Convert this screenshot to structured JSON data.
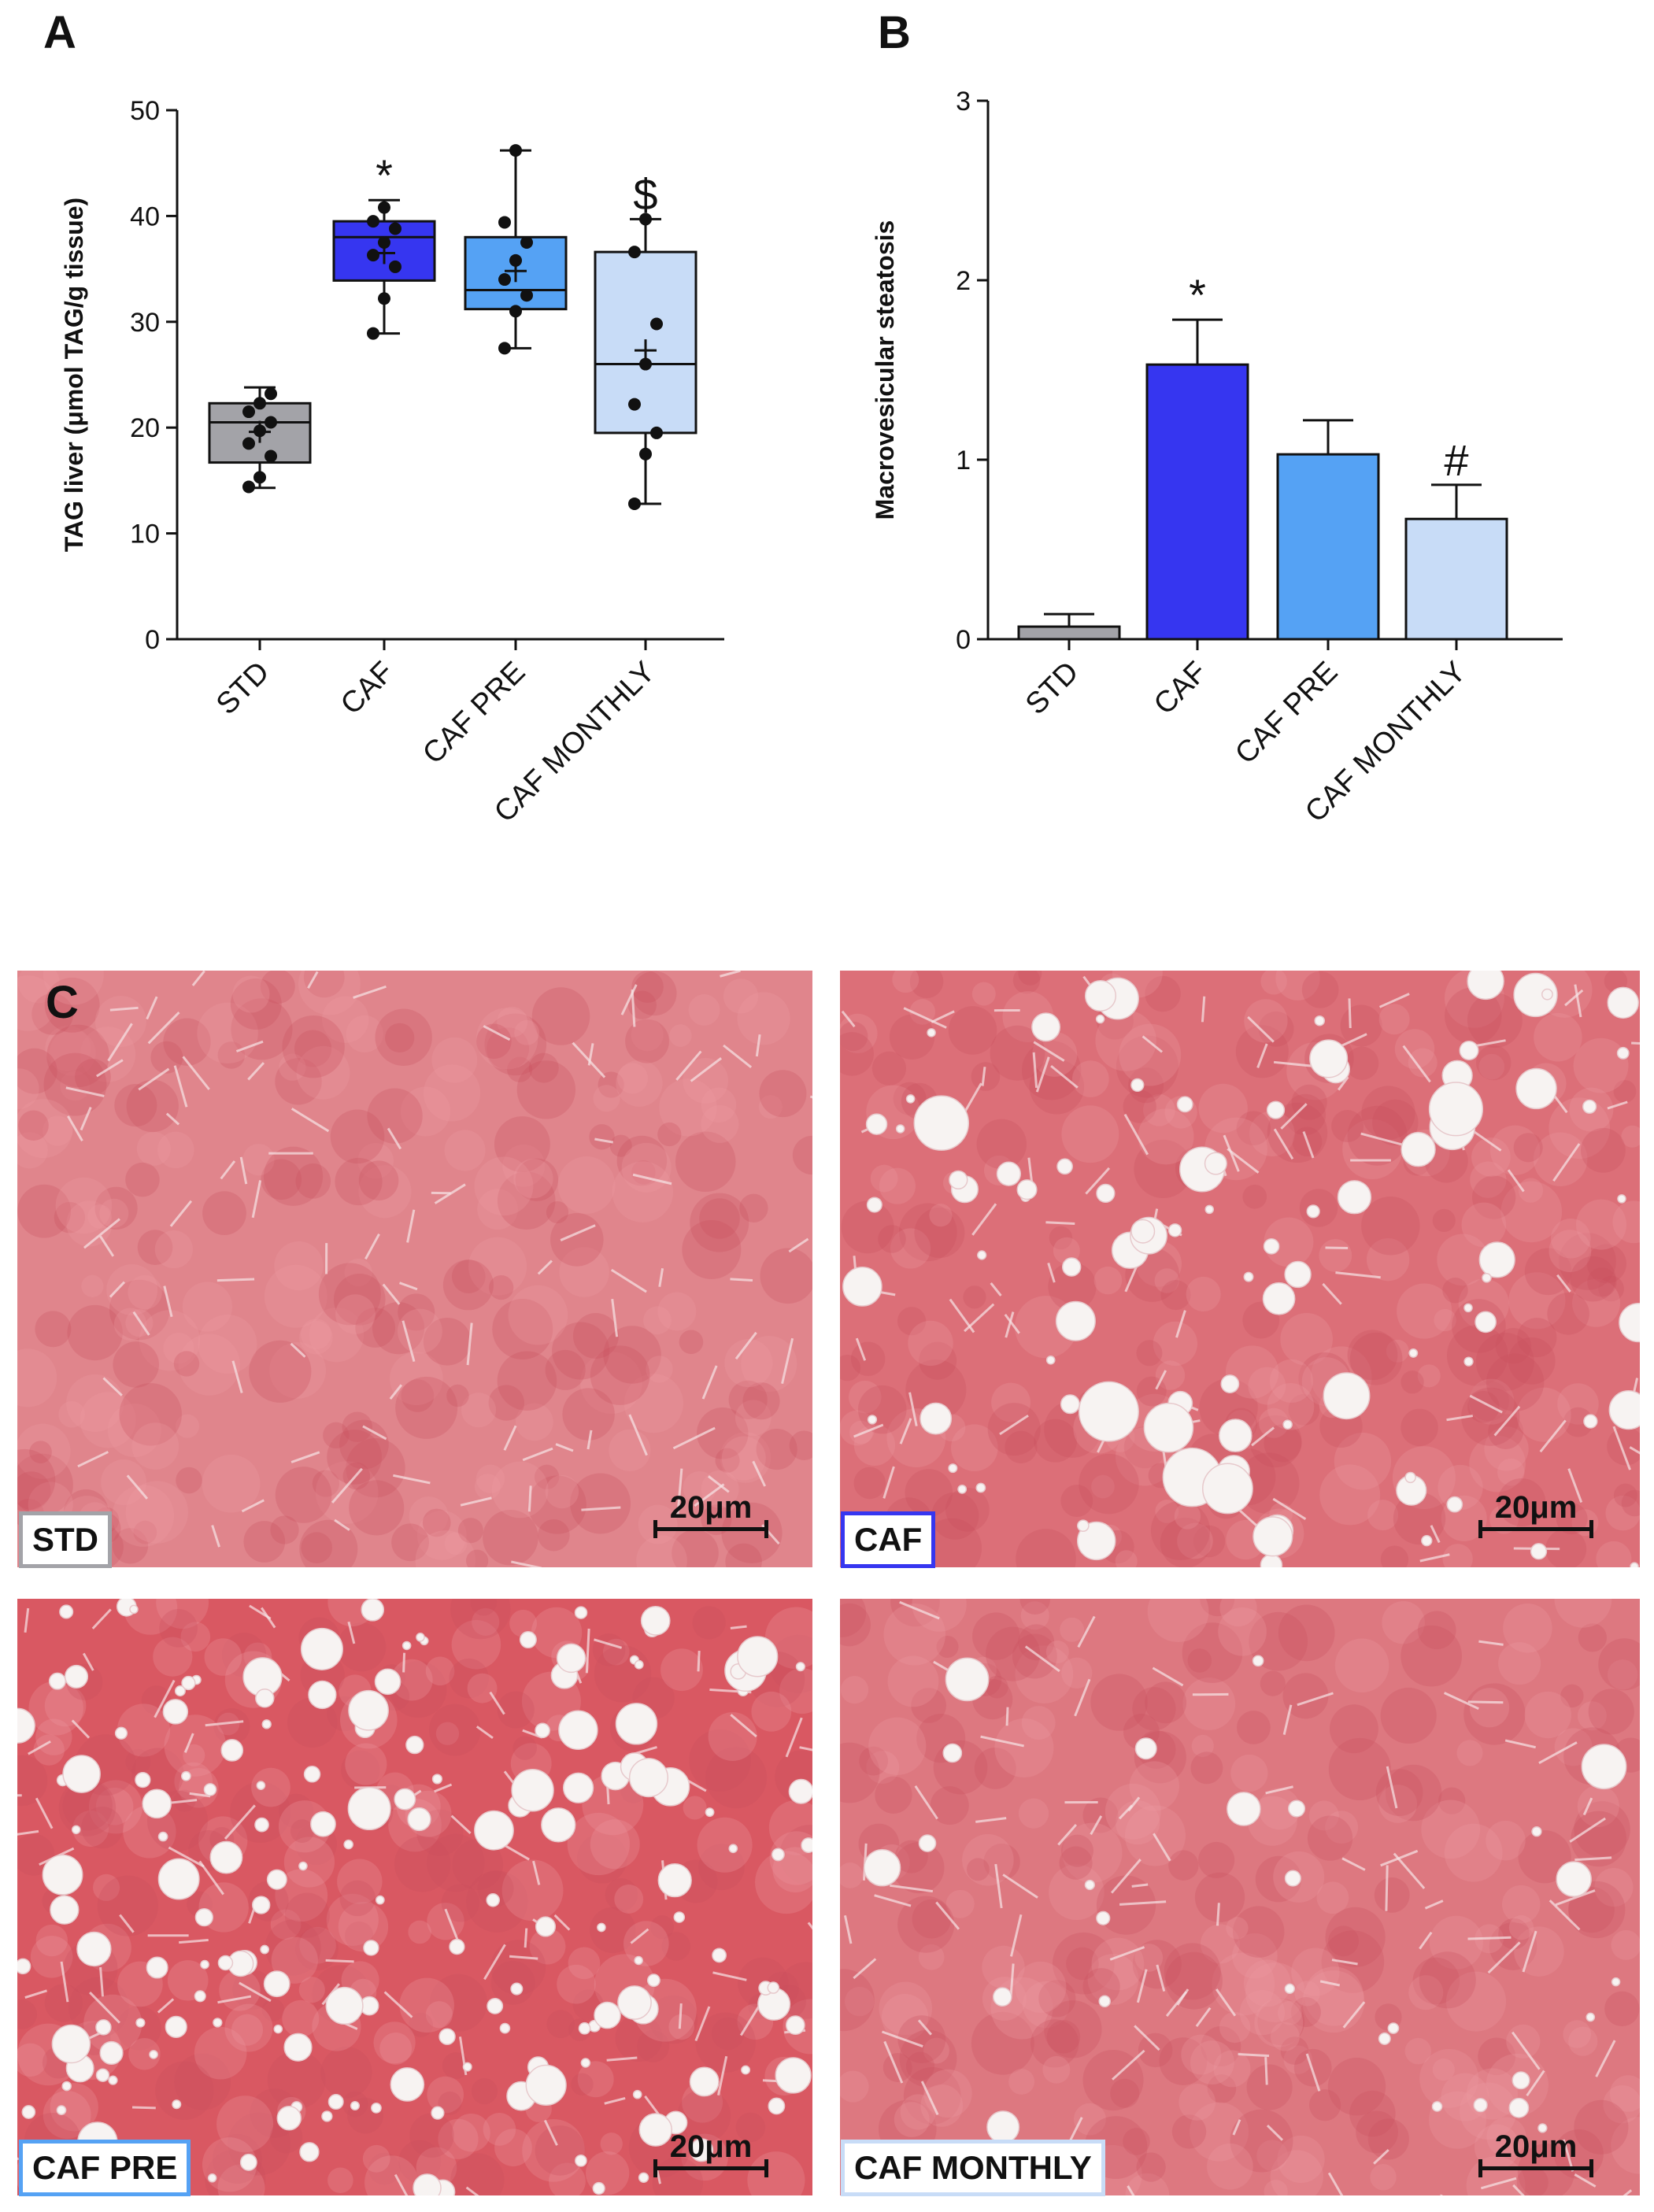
{
  "panels": {
    "a": "A",
    "b": "B",
    "c": "C"
  },
  "chart_data": [
    {
      "type": "box",
      "panel": "A",
      "ylabel": "TAG liver (μmol TAG/g tissue)",
      "ylim": [
        0,
        50
      ],
      "yticks": [
        0,
        10,
        20,
        30,
        40,
        50
      ],
      "categories": [
        "STD",
        "CAF",
        "CAF PRE",
        "CAF MONTHLY"
      ],
      "colors": [
        "#a3a3a8",
        "#3636f0",
        "#55a2f4",
        "#c8dcf7"
      ],
      "boxes": [
        {
          "min": 14.3,
          "q1": 16.7,
          "median": 20.5,
          "q3": 22.3,
          "max": 23.8,
          "mean": 19.6,
          "points": [
            14.4,
            15.3,
            17.3,
            18.5,
            19.7,
            20.5,
            21.5,
            22.3,
            23.2
          ]
        },
        {
          "min": 28.9,
          "q1": 33.9,
          "median": 38.0,
          "q3": 39.5,
          "max": 41.5,
          "mean": 36.5,
          "points": [
            28.9,
            32.2,
            35.2,
            36.3,
            37.5,
            38.8,
            39.5,
            40.8
          ]
        },
        {
          "min": 27.5,
          "q1": 31.2,
          "median": 33.0,
          "q3": 38.0,
          "max": 46.2,
          "mean": 34.8,
          "points": [
            27.5,
            31.0,
            32.5,
            34.0,
            35.8,
            37.5,
            39.4,
            46.2
          ]
        },
        {
          "min": 12.8,
          "q1": 19.5,
          "median": 26.0,
          "q3": 36.6,
          "max": 39.7,
          "mean": 27.3,
          "points": [
            12.8,
            17.5,
            19.5,
            22.2,
            26.0,
            29.8,
            36.6,
            39.7
          ]
        }
      ],
      "annotations": [
        {
          "category": "CAF",
          "text": "*"
        },
        {
          "category": "CAF MONTHLY",
          "text": "$"
        }
      ]
    },
    {
      "type": "bar",
      "panel": "B",
      "ylabel": "Macrovesicular steatosis",
      "ylim": [
        0,
        3
      ],
      "yticks": [
        0,
        1,
        2,
        3
      ],
      "categories": [
        "STD",
        "CAF",
        "CAF PRE",
        "CAF MONTHLY"
      ],
      "colors": [
        "#a3a3a8",
        "#3636f0",
        "#55a2f4",
        "#c8dcf7"
      ],
      "values": [
        0.07,
        1.53,
        1.03,
        0.67
      ],
      "errors": [
        0.07,
        0.25,
        0.19,
        0.19
      ],
      "annotations": [
        {
          "category": "CAF",
          "text": "*"
        },
        {
          "category": "CAF MONTHLY",
          "text": "#"
        }
      ]
    }
  ],
  "micrographs": [
    {
      "label": "STD",
      "scale": "20μm",
      "border": "#a3a3a8"
    },
    {
      "label": "CAF",
      "scale": "20μm",
      "border": "#3636f0"
    },
    {
      "label": "CAF PRE",
      "scale": "20μm",
      "border": "#55a2f4"
    },
    {
      "label": "CAF MONTHLY",
      "scale": "20μm",
      "border": "#c8dcf7"
    }
  ]
}
